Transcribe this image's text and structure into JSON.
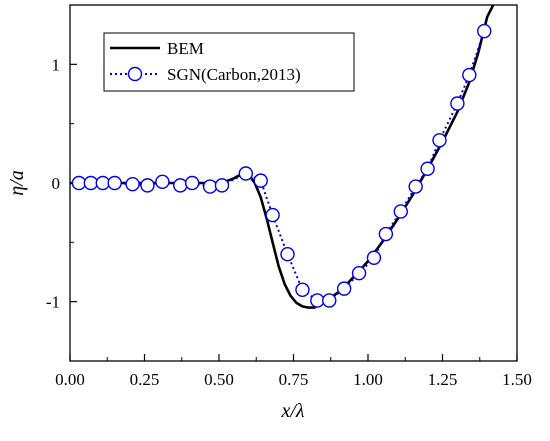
{
  "chart_data": {
    "type": "line",
    "xlabel": "x/λ",
    "ylabel": "η/a",
    "xlim": [
      0,
      1.5
    ],
    "ylim": [
      -1.5,
      1.5
    ],
    "x_ticks": [
      0,
      0.25,
      0.5,
      0.75,
      1.0,
      1.25,
      1.5
    ],
    "x_tick_labels": [
      "0.00",
      "0.25",
      "0.50",
      "0.75",
      "1.00",
      "1.25",
      "1.50"
    ],
    "y_ticks": [
      -1,
      0,
      1
    ],
    "y_tick_labels": [
      "-1",
      "0",
      "1"
    ],
    "legend_position": "top-left",
    "series": [
      {
        "name": "BEM",
        "style": "solid-line",
        "color": "#000000",
        "x": [
          0.0,
          0.1,
          0.2,
          0.3,
          0.4,
          0.48,
          0.52,
          0.55,
          0.58,
          0.6,
          0.62,
          0.64,
          0.66,
          0.68,
          0.7,
          0.72,
          0.74,
          0.76,
          0.78,
          0.8,
          0.82,
          0.84,
          0.86,
          0.88,
          0.9,
          0.93,
          0.96,
          1.0,
          1.05,
          1.1,
          1.15,
          1.2,
          1.25,
          1.3,
          1.34,
          1.37,
          1.4,
          1.42
        ],
        "y": [
          0.0,
          0.0,
          0.0,
          0.0,
          0.0,
          0.0,
          0.01,
          0.04,
          0.08,
          0.07,
          0.0,
          -0.12,
          -0.3,
          -0.5,
          -0.7,
          -0.85,
          -0.95,
          -1.01,
          -1.04,
          -1.05,
          -1.05,
          -1.02,
          -0.99,
          -0.96,
          -0.92,
          -0.85,
          -0.77,
          -0.66,
          -0.49,
          -0.3,
          -0.1,
          0.12,
          0.35,
          0.6,
          0.85,
          1.1,
          1.4,
          1.5
        ]
      },
      {
        "name": "SGN(Carbon,2013)",
        "style": "dotted-line-circle-markers",
        "color": "#0000ee",
        "x": [
          0.03,
          0.07,
          0.11,
          0.15,
          0.21,
          0.26,
          0.31,
          0.37,
          0.41,
          0.47,
          0.51,
          0.59,
          0.64,
          0.68,
          0.73,
          0.78,
          0.83,
          0.87,
          0.92,
          0.97,
          1.02,
          1.06,
          1.11,
          1.16,
          1.2,
          1.24,
          1.3,
          1.34,
          1.39
        ],
        "y": [
          0.0,
          0.0,
          0.0,
          0.0,
          -0.01,
          -0.02,
          0.01,
          -0.02,
          0.0,
          -0.03,
          -0.02,
          0.08,
          0.02,
          -0.27,
          -0.6,
          -0.9,
          -0.99,
          -0.99,
          -0.89,
          -0.76,
          -0.63,
          -0.43,
          -0.24,
          -0.03,
          0.12,
          0.36,
          0.67,
          0.91,
          1.28
        ]
      }
    ]
  }
}
